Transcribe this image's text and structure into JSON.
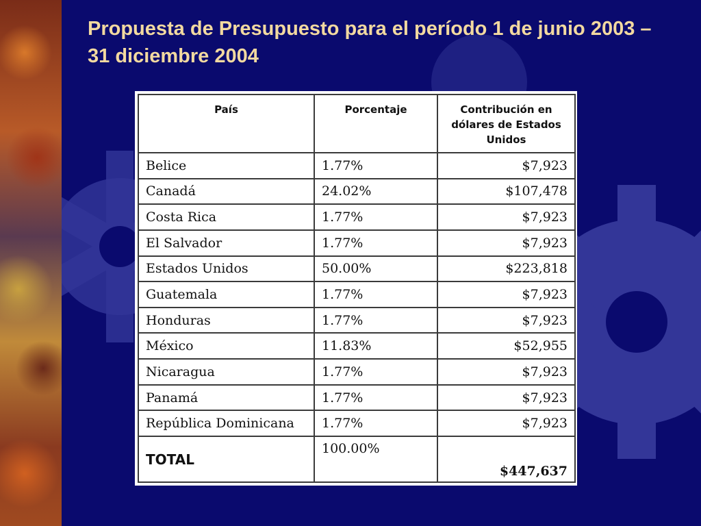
{
  "slide": {
    "title": "Propuesta de Presupuesto para el período 1 de junio 2003 – 31 diciembre 2004"
  },
  "table": {
    "headers": [
      "País",
      "Porcentaje",
      "Contribución en dólares de Estados Unidos"
    ],
    "rows": [
      {
        "country": "Belice",
        "percent": "1.77%",
        "amount": "$7,923"
      },
      {
        "country": "Canadá",
        "percent": "24.02%",
        "amount": "$107,478"
      },
      {
        "country": "Costa Rica",
        "percent": "1.77%",
        "amount": "$7,923"
      },
      {
        "country": "El Salvador",
        "percent": "1.77%",
        "amount": "$7,923"
      },
      {
        "country": "Estados Unidos",
        "percent": "50.00%",
        "amount": "$223,818"
      },
      {
        "country": "Guatemala",
        "percent": "1.77%",
        "amount": "$7,923"
      },
      {
        "country": "Honduras",
        "percent": "1.77%",
        "amount": "$7,923"
      },
      {
        "country": "México",
        "percent": "11.83%",
        "amount": "$52,955"
      },
      {
        "country": "Nicaragua",
        "percent": "1.77%",
        "amount": "$7,923"
      },
      {
        "country": "Panamá",
        "percent": "1.77%",
        "amount": "$7,923"
      },
      {
        "country": "República Dominicana",
        "percent": "1.77%",
        "amount": "$7,923"
      }
    ],
    "total": {
      "label": "TOTAL",
      "percent": "100.00%",
      "amount": "$447,637"
    }
  },
  "colors": {
    "background": "#0a0a6e",
    "gear": "#4a50b0",
    "title": "#f2d9a0"
  }
}
